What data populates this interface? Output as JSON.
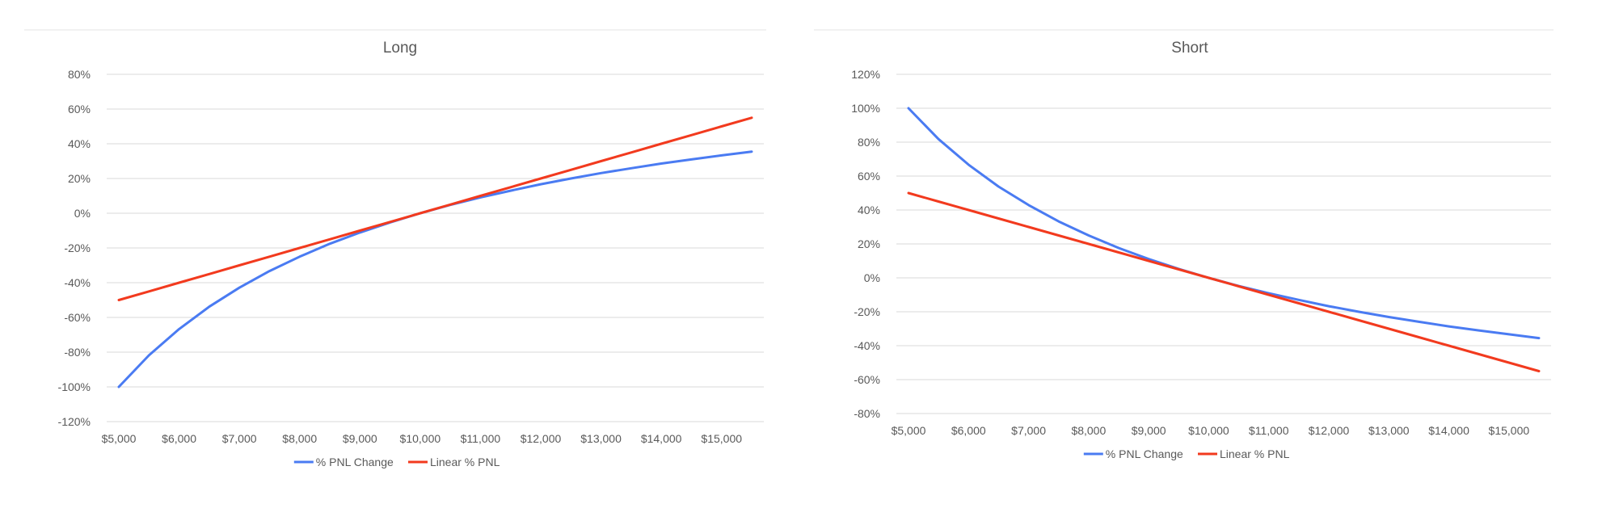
{
  "chart_data": [
    {
      "type": "line",
      "title": "Long",
      "xlabel": "",
      "ylabel": "",
      "x": [
        5000,
        5500,
        6000,
        6500,
        7000,
        7500,
        8000,
        8500,
        9000,
        9500,
        10000,
        10500,
        11000,
        11500,
        12000,
        12500,
        13000,
        13500,
        14000,
        14500,
        15000,
        15500
      ],
      "x_tick_values": [
        5000,
        6000,
        7000,
        8000,
        9000,
        10000,
        11000,
        12000,
        13000,
        14000,
        15000
      ],
      "x_tick_labels": [
        "$5,000",
        "$6,000",
        "$7,000",
        "$8,000",
        "$9,000",
        "$10,000",
        "$11,000",
        "$12,000",
        "$13,000",
        "$14,000",
        "$15,000"
      ],
      "y_tick_values": [
        -120,
        -100,
        -80,
        -60,
        -40,
        -20,
        0,
        20,
        40,
        60,
        80
      ],
      "y_tick_labels": [
        "-120%",
        "-100%",
        "-80%",
        "-60%",
        "-40%",
        "-20%",
        "0%",
        "20%",
        "40%",
        "60%",
        "80%"
      ],
      "ylim": [
        -120,
        80
      ],
      "xlim": [
        5000,
        15500
      ],
      "grid": true,
      "legend_position": "bottom",
      "series": [
        {
          "name": "% PNL Change",
          "color": "#4A7BF2",
          "values": [
            -100,
            -81.8,
            -66.7,
            -53.8,
            -42.9,
            -33.3,
            -25,
            -17.6,
            -11.1,
            -5.3,
            0,
            4.8,
            9.1,
            13,
            16.7,
            20,
            23.1,
            25.9,
            28.6,
            31,
            33.3,
            35.5
          ]
        },
        {
          "name": "Linear % PNL",
          "color": "#F23A1E",
          "values": [
            -50,
            -45,
            -40,
            -35,
            -30,
            -25,
            -20,
            -15,
            -10,
            -5,
            0,
            5,
            10,
            15,
            20,
            25,
            30,
            35,
            40,
            45,
            50,
            55
          ]
        }
      ]
    },
    {
      "type": "line",
      "title": "Short",
      "xlabel": "",
      "ylabel": "",
      "x": [
        5000,
        5500,
        6000,
        6500,
        7000,
        7500,
        8000,
        8500,
        9000,
        9500,
        10000,
        10500,
        11000,
        11500,
        12000,
        12500,
        13000,
        13500,
        14000,
        14500,
        15000,
        15500
      ],
      "x_tick_values": [
        5000,
        6000,
        7000,
        8000,
        9000,
        10000,
        11000,
        12000,
        13000,
        14000,
        15000
      ],
      "x_tick_labels": [
        "$5,000",
        "$6,000",
        "$7,000",
        "$8,000",
        "$9,000",
        "$10,000",
        "$11,000",
        "$12,000",
        "$13,000",
        "$14,000",
        "$15,000"
      ],
      "y_tick_values": [
        -80,
        -60,
        -40,
        -20,
        0,
        20,
        40,
        60,
        80,
        100,
        120
      ],
      "y_tick_labels": [
        "-80%",
        "-60%",
        "-40%",
        "-20%",
        "0%",
        "20%",
        "40%",
        "60%",
        "80%",
        "100%",
        "120%"
      ],
      "ylim": [
        -80,
        120
      ],
      "xlim": [
        5000,
        15500
      ],
      "grid": true,
      "legend_position": "bottom",
      "series": [
        {
          "name": "% PNL Change",
          "color": "#4A7BF2",
          "values": [
            100,
            81.8,
            66.7,
            53.8,
            42.9,
            33.3,
            25,
            17.6,
            11.1,
            5.3,
            0,
            -4.8,
            -9.1,
            -13,
            -16.7,
            -20,
            -23.1,
            -25.9,
            -28.6,
            -31,
            -33.3,
            -35.5
          ]
        },
        {
          "name": "Linear % PNL",
          "color": "#F23A1E",
          "values": [
            50,
            45,
            40,
            35,
            30,
            25,
            20,
            15,
            10,
            5,
            0,
            -5,
            -10,
            -15,
            -20,
            -25,
            -30,
            -35,
            -40,
            -45,
            -50,
            -55
          ]
        }
      ]
    }
  ]
}
